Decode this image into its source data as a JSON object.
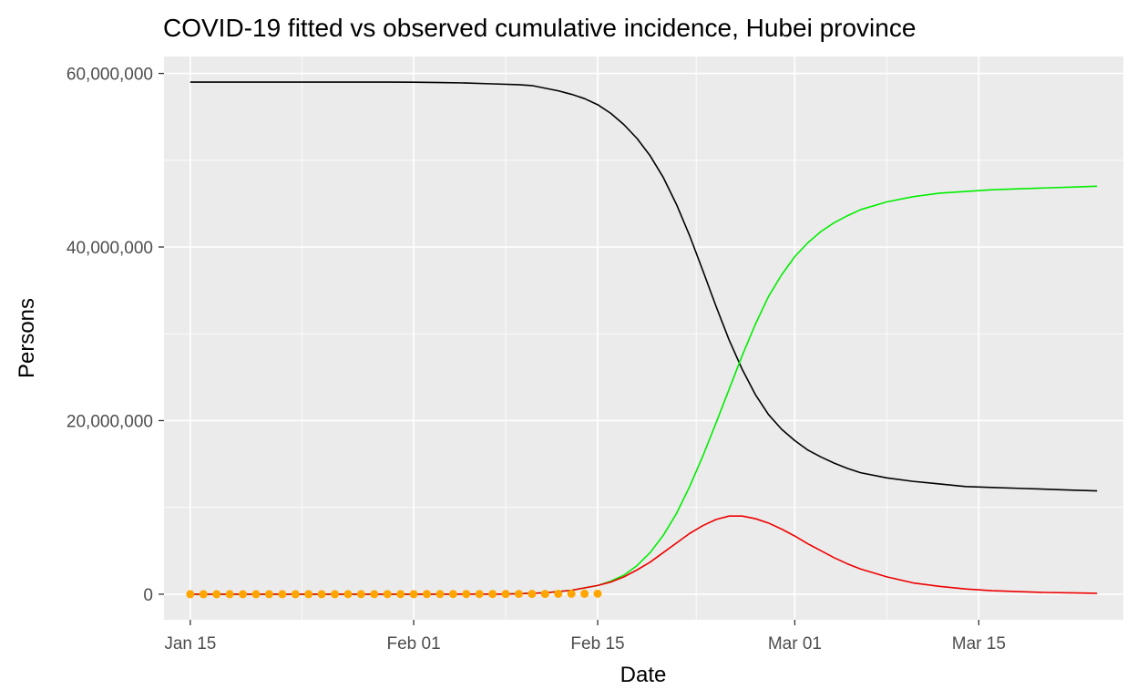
{
  "chart_data": {
    "type": "line",
    "title": "COVID-19 fitted vs observed cumulative incidence, Hubei province",
    "xlabel": "Date",
    "ylabel": "Persons",
    "x_ticks": [
      {
        "date": "2020-01-15",
        "label": "Jan 15"
      },
      {
        "date": "2020-02-01",
        "label": "Feb 01"
      },
      {
        "date": "2020-02-15",
        "label": "Feb 15"
      },
      {
        "date": "2020-03-01",
        "label": "Mar 01"
      },
      {
        "date": "2020-03-15",
        "label": "Mar 15"
      }
    ],
    "y_ticks": [
      {
        "value": 0,
        "label": "0"
      },
      {
        "value": 20000000,
        "label": "20,000,000"
      },
      {
        "value": 40000000,
        "label": "40,000,000"
      },
      {
        "value": 60000000,
        "label": "60,000,000"
      }
    ],
    "xlim": [
      "2020-01-13",
      "2020-03-26"
    ],
    "ylim": [
      -2950000,
      61950000
    ],
    "grid": true,
    "series": [
      {
        "color": "#000000",
        "kind": "line",
        "points": [
          [
            "2020-01-15",
            59000000
          ],
          [
            "2020-01-20",
            59000000
          ],
          [
            "2020-01-25",
            59000000
          ],
          [
            "2020-01-30",
            59000000
          ],
          [
            "2020-02-01",
            58990000
          ],
          [
            "2020-02-03",
            58950000
          ],
          [
            "2020-02-05",
            58900000
          ],
          [
            "2020-02-07",
            58800000
          ],
          [
            "2020-02-09",
            58700000
          ],
          [
            "2020-02-10",
            58600000
          ],
          [
            "2020-02-11",
            58300000
          ],
          [
            "2020-02-12",
            58000000
          ],
          [
            "2020-02-13",
            57600000
          ],
          [
            "2020-02-14",
            57100000
          ],
          [
            "2020-02-15",
            56400000
          ],
          [
            "2020-02-16",
            55400000
          ],
          [
            "2020-02-17",
            54100000
          ],
          [
            "2020-02-18",
            52500000
          ],
          [
            "2020-02-19",
            50500000
          ],
          [
            "2020-02-20",
            48000000
          ],
          [
            "2020-02-21",
            44900000
          ],
          [
            "2020-02-22",
            41300000
          ],
          [
            "2020-02-23",
            37300000
          ],
          [
            "2020-02-24",
            33200000
          ],
          [
            "2020-02-25",
            29300000
          ],
          [
            "2020-02-26",
            25900000
          ],
          [
            "2020-02-27",
            23000000
          ],
          [
            "2020-02-28",
            20700000
          ],
          [
            "2020-02-29",
            19000000
          ],
          [
            "2020-03-01",
            17700000
          ],
          [
            "2020-03-02",
            16600000
          ],
          [
            "2020-03-03",
            15800000
          ],
          [
            "2020-03-04",
            15100000
          ],
          [
            "2020-03-05",
            14500000
          ],
          [
            "2020-03-06",
            14000000
          ],
          [
            "2020-03-08",
            13400000
          ],
          [
            "2020-03-10",
            13000000
          ],
          [
            "2020-03-12",
            12700000
          ],
          [
            "2020-03-14",
            12400000
          ],
          [
            "2020-03-16",
            12300000
          ],
          [
            "2020-03-18",
            12200000
          ],
          [
            "2020-03-20",
            12100000
          ],
          [
            "2020-03-22",
            12000000
          ],
          [
            "2020-03-24",
            11900000
          ]
        ]
      },
      {
        "color": "#00ee00",
        "kind": "line",
        "points": [
          [
            "2020-01-15",
            0
          ],
          [
            "2020-02-01",
            0
          ],
          [
            "2020-02-08",
            10000
          ],
          [
            "2020-02-11",
            150000
          ],
          [
            "2020-02-13",
            450000
          ],
          [
            "2020-02-15",
            1000000
          ],
          [
            "2020-02-16",
            1500000
          ],
          [
            "2020-02-17",
            2200000
          ],
          [
            "2020-02-18",
            3300000
          ],
          [
            "2020-02-19",
            4800000
          ],
          [
            "2020-02-20",
            6800000
          ],
          [
            "2020-02-21",
            9300000
          ],
          [
            "2020-02-22",
            12400000
          ],
          [
            "2020-02-23",
            15900000
          ],
          [
            "2020-02-24",
            19700000
          ],
          [
            "2020-02-25",
            23600000
          ],
          [
            "2020-02-26",
            27500000
          ],
          [
            "2020-02-27",
            31100000
          ],
          [
            "2020-02-28",
            34300000
          ],
          [
            "2020-02-29",
            36800000
          ],
          [
            "2020-03-01",
            38900000
          ],
          [
            "2020-03-02",
            40500000
          ],
          [
            "2020-03-03",
            41800000
          ],
          [
            "2020-03-04",
            42800000
          ],
          [
            "2020-03-05",
            43600000
          ],
          [
            "2020-03-06",
            44300000
          ],
          [
            "2020-03-08",
            45200000
          ],
          [
            "2020-03-10",
            45800000
          ],
          [
            "2020-03-12",
            46200000
          ],
          [
            "2020-03-14",
            46400000
          ],
          [
            "2020-03-16",
            46600000
          ],
          [
            "2020-03-18",
            46700000
          ],
          [
            "2020-03-20",
            46800000
          ],
          [
            "2020-03-22",
            46900000
          ],
          [
            "2020-03-24",
            47000000
          ]
        ]
      },
      {
        "color": "#ee0000",
        "kind": "line",
        "points": [
          [
            "2020-01-15",
            0
          ],
          [
            "2020-02-01",
            0
          ],
          [
            "2020-02-08",
            10000
          ],
          [
            "2020-02-11",
            150000
          ],
          [
            "2020-02-13",
            450000
          ],
          [
            "2020-02-15",
            1000000
          ],
          [
            "2020-02-16",
            1400000
          ],
          [
            "2020-02-17",
            2000000
          ],
          [
            "2020-02-18",
            2800000
          ],
          [
            "2020-02-19",
            3700000
          ],
          [
            "2020-02-20",
            4800000
          ],
          [
            "2020-02-21",
            5900000
          ],
          [
            "2020-02-22",
            7000000
          ],
          [
            "2020-02-23",
            7900000
          ],
          [
            "2020-02-24",
            8600000
          ],
          [
            "2020-02-25",
            9000000
          ],
          [
            "2020-02-26",
            9000000
          ],
          [
            "2020-02-27",
            8700000
          ],
          [
            "2020-02-28",
            8200000
          ],
          [
            "2020-02-29",
            7500000
          ],
          [
            "2020-03-01",
            6700000
          ],
          [
            "2020-03-02",
            5800000
          ],
          [
            "2020-03-03",
            5000000
          ],
          [
            "2020-03-04",
            4200000
          ],
          [
            "2020-03-05",
            3500000
          ],
          [
            "2020-03-06",
            2900000
          ],
          [
            "2020-03-08",
            2000000
          ],
          [
            "2020-03-10",
            1300000
          ],
          [
            "2020-03-12",
            900000
          ],
          [
            "2020-03-14",
            600000
          ],
          [
            "2020-03-16",
            400000
          ],
          [
            "2020-03-18",
            300000
          ],
          [
            "2020-03-20",
            200000
          ],
          [
            "2020-03-22",
            150000
          ],
          [
            "2020-03-24",
            100000
          ]
        ]
      },
      {
        "color": "#ffa500",
        "kind": "points",
        "points": [
          [
            "2020-01-15",
            41
          ],
          [
            "2020-01-16",
            45
          ],
          [
            "2020-01-17",
            62
          ],
          [
            "2020-01-18",
            121
          ],
          [
            "2020-01-19",
            198
          ],
          [
            "2020-01-20",
            270
          ],
          [
            "2020-01-21",
            375
          ],
          [
            "2020-01-22",
            444
          ],
          [
            "2020-01-23",
            549
          ],
          [
            "2020-01-24",
            729
          ],
          [
            "2020-01-25",
            1052
          ],
          [
            "2020-01-26",
            1423
          ],
          [
            "2020-01-27",
            2714
          ],
          [
            "2020-01-28",
            3554
          ],
          [
            "2020-01-29",
            4586
          ],
          [
            "2020-01-30",
            5806
          ],
          [
            "2020-01-31",
            7153
          ],
          [
            "2020-02-01",
            9074
          ],
          [
            "2020-02-02",
            11177
          ],
          [
            "2020-02-03",
            13522
          ],
          [
            "2020-02-04",
            16678
          ],
          [
            "2020-02-05",
            19665
          ],
          [
            "2020-02-06",
            22112
          ],
          [
            "2020-02-07",
            24953
          ],
          [
            "2020-02-08",
            27100
          ],
          [
            "2020-02-09",
            29631
          ],
          [
            "2020-02-10",
            31728
          ],
          [
            "2020-02-11",
            33366
          ],
          [
            "2020-02-12",
            48206
          ],
          [
            "2020-02-13",
            51986
          ],
          [
            "2020-02-14",
            54406
          ],
          [
            "2020-02-15",
            56249
          ]
        ]
      }
    ]
  }
}
